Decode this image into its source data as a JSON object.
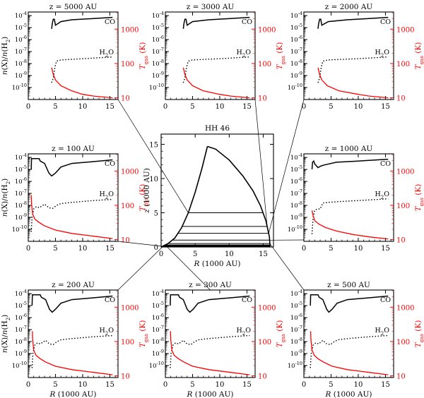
{
  "figure": {
    "common": {
      "xlabel_main": "R",
      "xlabel_unit": "(1000 AU)",
      "ylabel_left": "n(X)/n(H",
      "ylabel_left_sub": "2",
      "ylabel_left_close": ")",
      "ylabel_right": "T",
      "ylabel_right_sub": "gas",
      "ylabel_right_unit": " (K)",
      "co_label": "CO",
      "h2o_label_main": "H",
      "h2o_label_sub": "2",
      "h2o_label_end": "O",
      "xticks": [
        "0",
        "5",
        "10",
        "15"
      ],
      "yticks_left": [
        {
          "base": "10",
          "exp": "-4"
        },
        {
          "base": "10",
          "exp": "-5"
        },
        {
          "base": "10",
          "exp": "-6"
        },
        {
          "base": "10",
          "exp": "-7"
        },
        {
          "base": "10",
          "exp": "-8"
        },
        {
          "base": "10",
          "exp": "-9"
        },
        {
          "base": "10",
          "exp": "-10"
        }
      ],
      "yticks_right": [
        "1000",
        "100",
        "10"
      ]
    },
    "colors": {
      "co": "#000000",
      "h2o": "#000000",
      "tgas": "#ff0000",
      "axis": "#000000"
    }
  },
  "chart_data": [
    {
      "type": "line",
      "panel": "z5000",
      "title": "z = 5000 AU",
      "xlim": [
        0,
        16.5
      ],
      "ylim_log": [
        -11,
        -3.7
      ],
      "y2lim_log": [
        0.95,
        3.5
      ],
      "series": [
        {
          "name": "CO",
          "style": "solid",
          "x": [
            4.3,
            4.4,
            4.5,
            4.6,
            4.8,
            5.0,
            6.0,
            8.0,
            12.0,
            15.5
          ],
          "y_log": [
            -5.1,
            -4.7,
            -4.5,
            -4.3,
            -4.3,
            -4.8,
            -4.5,
            -4.35,
            -4.25,
            -4.15
          ]
        },
        {
          "name": "H2O",
          "style": "dotted",
          "x": [
            4.3,
            4.6,
            4.9,
            5.2,
            6.0,
            10.0,
            15.5
          ],
          "y_log": [
            -9.6,
            -9.2,
            -8.3,
            -7.8,
            -7.7,
            -7.6,
            -7.45
          ]
        },
        {
          "name": "Tgas",
          "style": "solid",
          "axis": "right",
          "x": [
            4.3,
            4.6,
            5.0,
            6.0,
            8.0,
            10.0,
            12.0,
            15.5
          ],
          "y_log": [
            1.88,
            1.68,
            1.52,
            1.35,
            1.2,
            1.1,
            1.05,
            1.0
          ]
        }
      ]
    },
    {
      "type": "line",
      "panel": "z3000",
      "title": "z = 3000 AU",
      "xlim": [
        0,
        16.5
      ],
      "ylim_log": [
        -11,
        -3.7
      ],
      "y2lim_log": [
        0.95,
        3.5
      ],
      "series": [
        {
          "name": "CO",
          "style": "solid",
          "x": [
            3.3,
            3.4,
            3.5,
            3.6,
            3.8,
            4.0,
            5.0,
            8.0,
            12.0,
            15.5
          ],
          "y_log": [
            -5.1,
            -4.7,
            -4.5,
            -4.3,
            -4.3,
            -4.8,
            -4.5,
            -4.35,
            -4.25,
            -4.15
          ]
        },
        {
          "name": "H2O",
          "style": "dotted",
          "x": [
            3.3,
            3.6,
            3.9,
            4.2,
            5.0,
            10.0,
            15.5
          ],
          "y_log": [
            -9.6,
            -9.2,
            -8.3,
            -7.8,
            -7.7,
            -7.6,
            -7.45
          ]
        },
        {
          "name": "Tgas",
          "style": "solid",
          "axis": "right",
          "x": [
            3.3,
            3.6,
            4.0,
            5.0,
            7.0,
            10.0,
            12.0,
            15.5
          ],
          "y_log": [
            1.88,
            1.68,
            1.52,
            1.35,
            1.2,
            1.1,
            1.05,
            1.0
          ]
        }
      ]
    },
    {
      "type": "line",
      "panel": "z2000",
      "title": "z = 2000 AU",
      "xlim": [
        0,
        16.5
      ],
      "ylim_log": [
        -11,
        -3.7
      ],
      "y2lim_log": [
        0.95,
        3.5
      ],
      "series": [
        {
          "name": "CO",
          "style": "solid",
          "x": [
            2.6,
            2.7,
            2.8,
            2.9,
            3.1,
            3.3,
            4.5,
            8.0,
            12.0,
            15.5
          ],
          "y_log": [
            -5.1,
            -4.7,
            -4.5,
            -4.3,
            -4.3,
            -4.8,
            -4.5,
            -4.35,
            -4.25,
            -4.15
          ]
        },
        {
          "name": "H2O",
          "style": "dotted",
          "x": [
            2.6,
            2.9,
            3.2,
            3.5,
            4.5,
            10.0,
            15.5
          ],
          "y_log": [
            -9.6,
            -9.2,
            -8.3,
            -7.8,
            -7.7,
            -7.6,
            -7.45
          ]
        },
        {
          "name": "Tgas",
          "style": "solid",
          "axis": "right",
          "x": [
            2.6,
            2.9,
            3.3,
            4.3,
            6.5,
            10.0,
            12.0,
            15.5
          ],
          "y_log": [
            1.88,
            1.68,
            1.52,
            1.35,
            1.2,
            1.1,
            1.05,
            1.0
          ]
        }
      ]
    },
    {
      "type": "line",
      "panel": "z100",
      "title": "z = 100 AU",
      "xlim": [
        0,
        16.5
      ],
      "ylim_log": [
        -11,
        -3.7
      ],
      "y2lim_log": [
        0.95,
        3.5
      ],
      "series": [
        {
          "name": "CO",
          "style": "solid",
          "x": [
            0.55,
            0.6,
            2.0,
            2.2,
            3.0,
            3.8,
            4.3,
            5.0,
            6.0,
            8.0,
            12.0,
            15.5
          ],
          "y_log": [
            -5.0,
            -4.1,
            -4.1,
            -4.3,
            -4.5,
            -5.3,
            -5.55,
            -5.3,
            -4.8,
            -4.5,
            -4.35,
            -4.2
          ]
        },
        {
          "name": "H2O",
          "style": "dotted",
          "x": [
            0.55,
            0.7,
            1.0,
            1.5,
            2.0,
            3.0,
            3.8,
            4.5,
            5.2,
            6.0,
            8.0,
            12.0,
            15.5
          ],
          "y_log": [
            -10.2,
            -9.0,
            -8.3,
            -8.1,
            -8.2,
            -7.9,
            -8.2,
            -8.25,
            -8.0,
            -7.85,
            -7.75,
            -7.6,
            -7.5
          ]
        },
        {
          "name": "Tgas",
          "style": "solid",
          "axis": "right",
          "x": [
            0.55,
            0.6,
            0.8,
            1.2,
            2.0,
            3.0,
            5.0,
            8.0,
            12.0,
            15.5
          ],
          "y_log": [
            2.3,
            2.05,
            1.75,
            1.6,
            1.5,
            1.4,
            1.28,
            1.18,
            1.1,
            1.03
          ]
        }
      ]
    },
    {
      "type": "line",
      "panel": "z1000",
      "title": "z = 1000 AU",
      "xlim": [
        0,
        16.5
      ],
      "ylim_log": [
        -11,
        -3.7
      ],
      "y2lim_log": [
        0.95,
        3.5
      ],
      "series": [
        {
          "name": "CO",
          "style": "solid",
          "x": [
            1.5,
            1.6,
            1.8,
            2.0,
            2.6,
            3.2,
            4.0,
            6.0,
            10.0,
            15.5
          ],
          "y_log": [
            -5.0,
            -4.4,
            -4.3,
            -4.55,
            -4.85,
            -4.7,
            -4.6,
            -4.4,
            -4.3,
            -4.15
          ]
        },
        {
          "name": "H2O",
          "style": "dotted",
          "x": [
            1.5,
            1.7,
            2.0,
            2.5,
            3.0,
            3.5,
            4.5,
            6.0,
            10.0,
            15.5
          ],
          "y_log": [
            -10.4,
            -9.0,
            -8.4,
            -8.3,
            -8.3,
            -7.8,
            -7.75,
            -7.7,
            -7.6,
            -7.45
          ]
        },
        {
          "name": "Tgas",
          "style": "solid",
          "axis": "right",
          "x": [
            1.5,
            1.7,
            2.0,
            2.8,
            4.0,
            6.0,
            9.0,
            12.0,
            15.5
          ],
          "y_log": [
            1.85,
            1.7,
            1.55,
            1.45,
            1.35,
            1.25,
            1.15,
            1.08,
            1.02
          ]
        }
      ]
    },
    {
      "type": "line",
      "panel": "z200",
      "title": "z = 200 AU",
      "xlim": [
        0,
        16.5
      ],
      "ylim_log": [
        -11,
        -3.7
      ],
      "y2lim_log": [
        0.95,
        3.5
      ],
      "series": [
        {
          "name": "CO",
          "style": "solid",
          "x": [
            0.7,
            0.75,
            2.2,
            2.4,
            3.2,
            3.9,
            4.4,
            5.0,
            6.0,
            8.0,
            12.0,
            15.5
          ],
          "y_log": [
            -5.0,
            -4.1,
            -4.1,
            -4.3,
            -4.5,
            -5.3,
            -5.55,
            -5.3,
            -4.8,
            -4.5,
            -4.35,
            -4.2
          ]
        },
        {
          "name": "H2O",
          "style": "dotted",
          "x": [
            0.7,
            0.85,
            1.2,
            1.7,
            2.2,
            3.2,
            3.9,
            4.6,
            5.3,
            6.0,
            8.0,
            12.0,
            15.5
          ],
          "y_log": [
            -10.2,
            -9.0,
            -8.3,
            -8.1,
            -8.2,
            -7.9,
            -8.2,
            -8.25,
            -8.0,
            -7.85,
            -7.75,
            -7.6,
            -7.5
          ]
        },
        {
          "name": "Tgas",
          "style": "solid",
          "axis": "right",
          "x": [
            0.75,
            0.8,
            1.0,
            1.4,
            2.2,
            3.2,
            5.0,
            8.0,
            12.0,
            15.5
          ],
          "y_log": [
            2.3,
            2.05,
            1.75,
            1.6,
            1.5,
            1.4,
            1.28,
            1.18,
            1.1,
            1.03
          ]
        }
      ]
    },
    {
      "type": "line",
      "panel": "z300",
      "title": "z = 300 AU",
      "xlim": [
        0,
        16.5
      ],
      "ylim_log": [
        -11,
        -3.7
      ],
      "y2lim_log": [
        0.95,
        3.5
      ],
      "series": [
        {
          "name": "CO",
          "style": "solid",
          "x": [
            0.9,
            0.95,
            2.4,
            2.6,
            3.3,
            4.0,
            4.5,
            5.1,
            6.0,
            8.0,
            12.0,
            15.5
          ],
          "y_log": [
            -5.0,
            -4.1,
            -4.1,
            -4.3,
            -4.5,
            -5.3,
            -5.55,
            -5.3,
            -4.8,
            -4.5,
            -4.35,
            -4.2
          ]
        },
        {
          "name": "H2O",
          "style": "dotted",
          "x": [
            0.9,
            1.05,
            1.4,
            1.9,
            2.4,
            3.3,
            4.0,
            4.7,
            5.4,
            6.1,
            8.0,
            12.0,
            15.5
          ],
          "y_log": [
            -10.2,
            -9.0,
            -8.3,
            -8.1,
            -8.2,
            -7.9,
            -8.2,
            -8.25,
            -8.0,
            -7.85,
            -7.75,
            -7.6,
            -7.5
          ]
        },
        {
          "name": "Tgas",
          "style": "solid",
          "axis": "right",
          "x": [
            0.95,
            1.0,
            1.2,
            1.6,
            2.4,
            3.4,
            5.0,
            8.0,
            12.0,
            15.5
          ],
          "y_log": [
            2.3,
            2.05,
            1.75,
            1.6,
            1.5,
            1.4,
            1.28,
            1.18,
            1.1,
            1.03
          ]
        }
      ]
    },
    {
      "type": "line",
      "panel": "z500",
      "title": "z = 500 AU",
      "xlim": [
        0,
        16.5
      ],
      "ylim_log": [
        -11,
        -3.7
      ],
      "y2lim_log": [
        0.95,
        3.5
      ],
      "series": [
        {
          "name": "CO",
          "style": "solid",
          "x": [
            1.2,
            1.25,
            2.6,
            2.8,
            3.5,
            4.2,
            4.6,
            5.2,
            6.1,
            8.0,
            12.0,
            15.5
          ],
          "y_log": [
            -5.0,
            -4.1,
            -4.1,
            -4.3,
            -4.5,
            -5.3,
            -5.55,
            -5.3,
            -4.8,
            -4.5,
            -4.35,
            -4.2
          ]
        },
        {
          "name": "H2O",
          "style": "dotted",
          "x": [
            1.2,
            1.35,
            1.7,
            2.2,
            2.7,
            3.5,
            4.2,
            4.9,
            5.6,
            6.3,
            8.0,
            12.0,
            15.5
          ],
          "y_log": [
            -10.2,
            -9.0,
            -8.3,
            -8.1,
            -8.2,
            -7.9,
            -8.2,
            -8.25,
            -8.0,
            -7.85,
            -7.75,
            -7.6,
            -7.5
          ]
        },
        {
          "name": "Tgas",
          "style": "solid",
          "axis": "right",
          "x": [
            1.25,
            1.3,
            1.5,
            1.9,
            2.6,
            3.6,
            5.2,
            8.0,
            12.0,
            15.5
          ],
          "y_log": [
            2.3,
            2.05,
            1.75,
            1.6,
            1.5,
            1.4,
            1.28,
            1.18,
            1.1,
            1.03
          ]
        }
      ]
    },
    {
      "type": "line",
      "panel": "center",
      "title": "HH 46",
      "xlabel": "R (1000 AU)",
      "ylabel": "z (1000 AU)",
      "xlim": [
        0,
        16.5
      ],
      "ylim": [
        0,
        16.5
      ],
      "xticks": [
        "0",
        "5",
        "10",
        "15"
      ],
      "yticks": [
        "0",
        "5",
        "10",
        "15"
      ],
      "series": [
        {
          "name": "inner-boundary",
          "x": [
            0.0,
            1.0,
            2.0,
            3.0,
            4.0,
            5.0,
            6.0,
            6.8
          ],
          "y": [
            0.0,
            0.5,
            1.3,
            2.8,
            5.0,
            8.0,
            11.5,
            14.7
          ]
        },
        {
          "name": "outer-boundary",
          "x": [
            6.8,
            8.0,
            10.0,
            12.0,
            13.5,
            14.6,
            15.4,
            15.9,
            16.0
          ],
          "y": [
            14.7,
            14.3,
            12.7,
            10.4,
            8.2,
            6.0,
            3.8,
            1.5,
            0.0
          ]
        }
      ],
      "cuts_z": [
        0.1,
        0.2,
        0.3,
        0.5,
        1.0,
        2.0,
        3.0,
        5.0
      ]
    }
  ]
}
